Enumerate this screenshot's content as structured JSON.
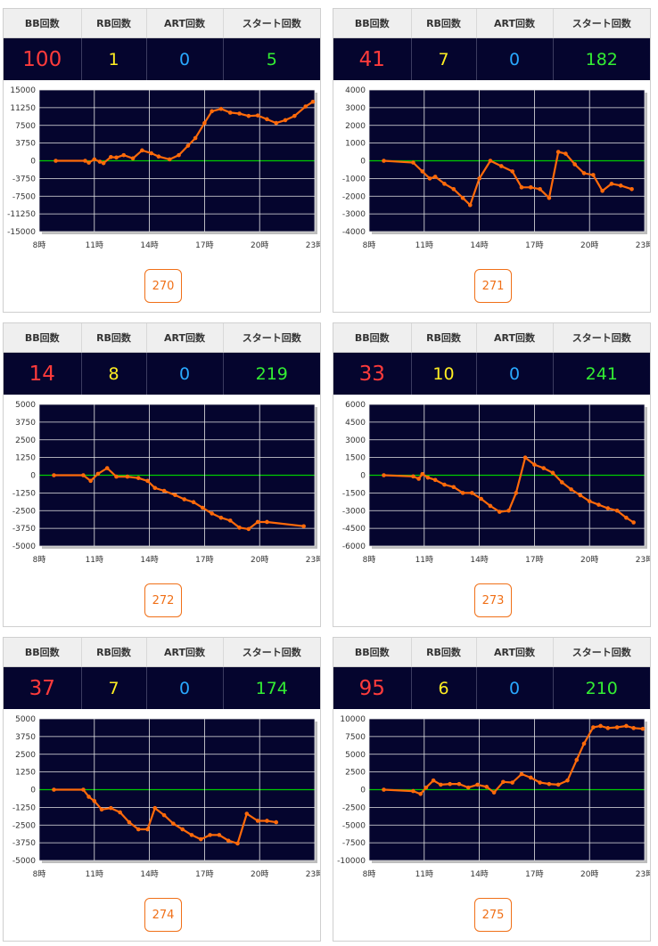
{
  "headers": {
    "bb": "BB回数",
    "rb": "RB回数",
    "art": "ART回数",
    "start": "スタート回数"
  },
  "colors": {
    "bb": "#ff3b3b",
    "rb": "#ffee22",
    "art": "#29a9ff",
    "start": "#33ee33",
    "line": "#ff6a0a",
    "zero_line": "#00cc00",
    "plot_bg": "#05052e",
    "button": "#f07018"
  },
  "x_ticks": [
    "8時",
    "11時",
    "14時",
    "17時",
    "20時",
    "23時"
  ],
  "machines": [
    {
      "number": "270",
      "bb": "100",
      "rb": "1",
      "art": "0",
      "start": "5"
    },
    {
      "number": "271",
      "bb": "41",
      "rb": "7",
      "art": "0",
      "start": "182"
    },
    {
      "number": "272",
      "bb": "14",
      "rb": "8",
      "art": "0",
      "start": "219"
    },
    {
      "number": "273",
      "bb": "33",
      "rb": "10",
      "art": "0",
      "start": "241"
    },
    {
      "number": "274",
      "bb": "37",
      "rb": "7",
      "art": "0",
      "start": "174"
    },
    {
      "number": "275",
      "bb": "95",
      "rb": "6",
      "art": "0",
      "start": "210"
    }
  ],
  "chart_data": [
    {
      "type": "line",
      "machine": "270",
      "xlim": [
        8,
        23
      ],
      "ylim": [
        -15000,
        15000
      ],
      "y_ticks": [
        "15000",
        "11250",
        "7500",
        "3750",
        "0",
        "-3750",
        "-7500",
        "-11250",
        "-15000"
      ],
      "x": [
        8.9,
        10.5,
        10.7,
        11.0,
        11.3,
        11.5,
        11.9,
        12.2,
        12.6,
        13.1,
        13.6,
        14.1,
        14.5,
        15.1,
        15.6,
        16.1,
        16.5,
        17.0,
        17.4,
        17.9,
        18.4,
        18.9,
        19.4,
        19.9,
        20.4,
        20.9,
        21.4,
        21.9,
        22.5,
        22.9
      ],
      "y": [
        0,
        0,
        -400,
        300,
        -200,
        -500,
        800,
        700,
        1200,
        500,
        2200,
        1600,
        900,
        300,
        1200,
        3200,
        4800,
        8000,
        10500,
        11000,
        10200,
        10000,
        9500,
        9600,
        8800,
        8000,
        8600,
        9500,
        11500,
        12500
      ]
    },
    {
      "type": "line",
      "machine": "271",
      "xlim": [
        8,
        23
      ],
      "ylim": [
        -4000,
        4000
      ],
      "y_ticks": [
        "4000",
        "3000",
        "2000",
        "1000",
        "0",
        "-1000",
        "-2000",
        "-3000",
        "-4000"
      ],
      "x": [
        8.8,
        10.4,
        10.9,
        11.3,
        11.6,
        12.1,
        12.6,
        13.1,
        13.5,
        14.0,
        14.6,
        15.2,
        15.8,
        16.3,
        16.8,
        17.3,
        17.8,
        18.3,
        18.7,
        19.2,
        19.7,
        20.2,
        20.7,
        21.2,
        21.7,
        22.3
      ],
      "y": [
        0,
        -100,
        -600,
        -1000,
        -900,
        -1300,
        -1600,
        -2100,
        -2500,
        -1000,
        0,
        -300,
        -600,
        -1500,
        -1500,
        -1600,
        -2100,
        500,
        400,
        -200,
        -700,
        -800,
        -1700,
        -1300,
        -1400,
        -1600
      ]
    },
    {
      "type": "line",
      "machine": "272",
      "xlim": [
        8,
        23
      ],
      "ylim": [
        -5000,
        5000
      ],
      "y_ticks": [
        "5000",
        "3750",
        "2500",
        "1250",
        "0",
        "-1250",
        "-2500",
        "-3750",
        "-5000"
      ],
      "x": [
        8.8,
        10.4,
        10.8,
        11.2,
        11.7,
        12.2,
        12.8,
        13.4,
        13.9,
        14.3,
        14.8,
        15.4,
        15.9,
        16.4,
        16.9,
        17.4,
        17.9,
        18.4,
        18.9,
        19.4,
        19.9,
        20.4,
        22.4
      ],
      "y": [
        0,
        0,
        -400,
        100,
        500,
        -100,
        -100,
        -200,
        -400,
        -900,
        -1100,
        -1400,
        -1700,
        -1900,
        -2300,
        -2700,
        -3000,
        -3200,
        -3700,
        -3800,
        -3300,
        -3300,
        -3600
      ]
    },
    {
      "type": "line",
      "machine": "273",
      "xlim": [
        8,
        23
      ],
      "ylim": [
        -6000,
        6000
      ],
      "y_ticks": [
        "6000",
        "4500",
        "3000",
        "1500",
        "0",
        "-1500",
        "-3000",
        "-4500",
        "-6000"
      ],
      "x": [
        8.8,
        10.4,
        10.7,
        10.9,
        11.2,
        11.6,
        12.1,
        12.6,
        13.1,
        13.6,
        14.1,
        14.6,
        15.1,
        15.6,
        16.0,
        16.5,
        17.0,
        17.5,
        18.0,
        18.5,
        19.0,
        19.5,
        20.0,
        20.5,
        21.0,
        21.5,
        22.0,
        22.4
      ],
      "y": [
        0,
        -100,
        -300,
        100,
        -200,
        -400,
        -800,
        -1000,
        -1500,
        -1500,
        -2000,
        -2600,
        -3100,
        -3000,
        -1500,
        1500,
        900,
        600,
        200,
        -600,
        -1200,
        -1700,
        -2200,
        -2500,
        -2800,
        -3000,
        -3600,
        -4000
      ]
    },
    {
      "type": "line",
      "machine": "274",
      "xlim": [
        8,
        23
      ],
      "ylim": [
        -5000,
        5000
      ],
      "y_ticks": [
        "5000",
        "3750",
        "2500",
        "1250",
        "0",
        "-1250",
        "-2500",
        "-3750",
        "-5000"
      ],
      "x": [
        8.8,
        10.4,
        10.7,
        11.0,
        11.4,
        11.9,
        12.4,
        12.9,
        13.4,
        13.9,
        14.3,
        14.8,
        15.3,
        15.8,
        16.3,
        16.8,
        17.3,
        17.8,
        18.3,
        18.8,
        19.3,
        19.9,
        20.4,
        20.9
      ],
      "y": [
        0,
        0,
        -500,
        -800,
        -1400,
        -1300,
        -1600,
        -2300,
        -2800,
        -2800,
        -1300,
        -1800,
        -2400,
        -2800,
        -3200,
        -3500,
        -3200,
        -3200,
        -3600,
        -3800,
        -1700,
        -2200,
        -2200,
        -2300
      ]
    },
    {
      "type": "line",
      "machine": "275",
      "xlim": [
        8,
        23
      ],
      "ylim": [
        -10000,
        10000
      ],
      "y_ticks": [
        "10000",
        "7500",
        "5000",
        "2500",
        "0",
        "-2500",
        "-5000",
        "-7500",
        "-10000"
      ],
      "x": [
        8.8,
        10.4,
        10.8,
        11.1,
        11.5,
        11.9,
        12.4,
        12.9,
        13.4,
        13.9,
        14.4,
        14.8,
        15.3,
        15.8,
        16.3,
        16.8,
        17.3,
        17.8,
        18.3,
        18.8,
        19.3,
        19.7,
        20.2,
        20.6,
        21.0,
        21.5,
        22.0,
        22.4,
        22.9
      ],
      "y": [
        0,
        -200,
        -600,
        300,
        1300,
        700,
        800,
        800,
        300,
        700,
        400,
        -400,
        1100,
        1000,
        2200,
        1700,
        1000,
        800,
        700,
        1300,
        4200,
        6500,
        8800,
        9000,
        8700,
        8800,
        9000,
        8700,
        8600
      ]
    }
  ]
}
